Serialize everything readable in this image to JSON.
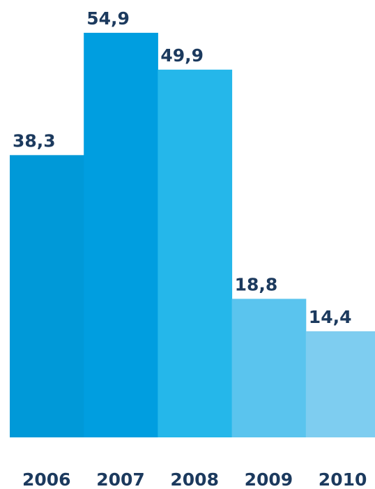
{
  "chart_data": {
    "type": "bar",
    "title": "",
    "xlabel": "",
    "ylabel": "",
    "categories": [
      "2006",
      "2007",
      "2008",
      "2009",
      "2010"
    ],
    "values": [
      38.3,
      54.9,
      49.9,
      18.8,
      14.4
    ],
    "value_labels": [
      "38,3",
      "54,9",
      "49,9",
      "18,8",
      "14,4"
    ],
    "bar_colors": [
      "#0099d8",
      "#009ee0",
      "#25b7ea",
      "#5ac4ee",
      "#7ecdf0"
    ],
    "label_color": "#1c3a5e",
    "ylim": [
      0,
      54.9
    ],
    "grid": false,
    "legend": "none"
  }
}
